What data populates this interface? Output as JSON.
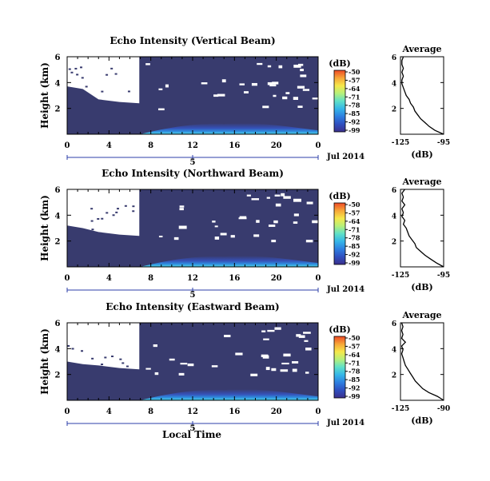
{
  "figure": {
    "common_xlabel": "Local Time",
    "date_label": "Jul 2014",
    "day_label": "5",
    "colors": {
      "background_panel": "#383b6e",
      "missing": "#ffffff",
      "colorbar": [
        "#3b2f8c",
        "#2f4fbf",
        "#2e7fe0",
        "#35b6e8",
        "#5fe0c8",
        "#b6f07a",
        "#f6e84a",
        "#f7a638",
        "#ee4a26"
      ]
    }
  },
  "chart_data": [
    {
      "type": "heatmap",
      "title": "Echo Intensity (Vertical Beam)",
      "ylabel": "Height (km)",
      "xlabel": "",
      "x_ticks": [
        "0",
        "4",
        "8",
        "12",
        "16",
        "20",
        "0"
      ],
      "y_ticks": [
        "2",
        "4",
        "6"
      ],
      "xlim": [
        0,
        24
      ],
      "ylim": [
        0,
        6
      ],
      "colorbar": {
        "label": "(dB)",
        "ticks": [
          "-50",
          "-57",
          "-64",
          "-71",
          "-78",
          "-85",
          "-92",
          "-99"
        ]
      },
      "average_profile": {
        "title": "Average",
        "xlabel": "(dB)",
        "x_ticks": [
          "-125",
          "-95"
        ],
        "y_ticks": [
          "2",
          "4",
          "6"
        ],
        "xlim": [
          -125,
          -95
        ],
        "points": [
          [
            -95,
            0.0
          ],
          [
            -101,
            0.3
          ],
          [
            -105,
            0.6
          ],
          [
            -108,
            0.9
          ],
          [
            -111,
            1.2
          ],
          [
            -113,
            1.5
          ],
          [
            -115,
            1.8
          ],
          [
            -116,
            2.1
          ],
          [
            -118,
            2.4
          ],
          [
            -119,
            2.7
          ],
          [
            -121,
            3.0
          ],
          [
            -122,
            3.3
          ],
          [
            -123,
            3.6
          ],
          [
            -124,
            3.9
          ],
          [
            -124,
            4.2
          ],
          [
            -123,
            4.5
          ],
          [
            -124,
            4.8
          ],
          [
            -123,
            5.1
          ],
          [
            -124,
            5.4
          ],
          [
            -124,
            5.7
          ],
          [
            -123,
            6.0
          ]
        ]
      }
    },
    {
      "type": "heatmap",
      "title": "Echo Intensity (Northward Beam)",
      "ylabel": "Height (km)",
      "xlabel": "",
      "x_ticks": [
        "0",
        "4",
        "8",
        "12",
        "16",
        "20",
        "0"
      ],
      "y_ticks": [
        "2",
        "4",
        "6"
      ],
      "xlim": [
        0,
        24
      ],
      "ylim": [
        0,
        6
      ],
      "colorbar": {
        "label": "(dB)",
        "ticks": [
          "-50",
          "-57",
          "-64",
          "-71",
          "-78",
          "-85",
          "-92",
          "-99"
        ]
      },
      "average_profile": {
        "title": "Average",
        "xlabel": "(dB)",
        "x_ticks": [
          "-125",
          "-95"
        ],
        "y_ticks": [
          "2",
          "4",
          "6"
        ],
        "xlim": [
          -125,
          -95
        ],
        "points": [
          [
            -95,
            0.0
          ],
          [
            -100,
            0.3
          ],
          [
            -104,
            0.6
          ],
          [
            -108,
            0.9
          ],
          [
            -111,
            1.2
          ],
          [
            -114,
            1.5
          ],
          [
            -115,
            1.8
          ],
          [
            -117,
            2.1
          ],
          [
            -119,
            2.4
          ],
          [
            -120,
            2.7
          ],
          [
            -121,
            3.0
          ],
          [
            -123,
            3.3
          ],
          [
            -122,
            3.6
          ],
          [
            -124,
            3.9
          ],
          [
            -123,
            4.2
          ],
          [
            -124,
            4.5
          ],
          [
            -122,
            4.8
          ],
          [
            -124,
            5.1
          ],
          [
            -123,
            5.4
          ],
          [
            -124,
            5.7
          ],
          [
            -122,
            6.0
          ]
        ]
      }
    },
    {
      "type": "heatmap",
      "title": "Echo Intensity (Eastward Beam)",
      "ylabel": "Height (km)",
      "xlabel": "",
      "x_ticks": [
        "0",
        "4",
        "8",
        "12",
        "16",
        "20",
        "0"
      ],
      "y_ticks": [
        "2",
        "4",
        "6"
      ],
      "xlim": [
        0,
        24
      ],
      "ylim": [
        0,
        6
      ],
      "colorbar": {
        "label": "(dB)",
        "ticks": [
          "-50",
          "-57",
          "-64",
          "-71",
          "-78",
          "-85",
          "-92",
          "-99"
        ]
      },
      "average_profile": {
        "title": "Average",
        "xlabel": "(dB)",
        "x_ticks": [
          "-125",
          "-90"
        ],
        "y_ticks": [
          "2",
          "4",
          "6"
        ],
        "xlim": [
          -125,
          -90
        ],
        "points": [
          [
            -90,
            0.0
          ],
          [
            -95,
            0.3
          ],
          [
            -102,
            0.6
          ],
          [
            -107,
            0.9
          ],
          [
            -110,
            1.2
          ],
          [
            -113,
            1.5
          ],
          [
            -115,
            1.8
          ],
          [
            -117,
            2.1
          ],
          [
            -119,
            2.4
          ],
          [
            -121,
            2.7
          ],
          [
            -122,
            3.0
          ],
          [
            -123,
            3.3
          ],
          [
            -124,
            3.6
          ],
          [
            -123,
            3.9
          ],
          [
            -124,
            4.2
          ],
          [
            -121,
            4.5
          ],
          [
            -124,
            4.8
          ],
          [
            -123,
            5.1
          ],
          [
            -124,
            5.4
          ],
          [
            -123,
            5.7
          ],
          [
            -124,
            6.0
          ]
        ]
      }
    }
  ]
}
